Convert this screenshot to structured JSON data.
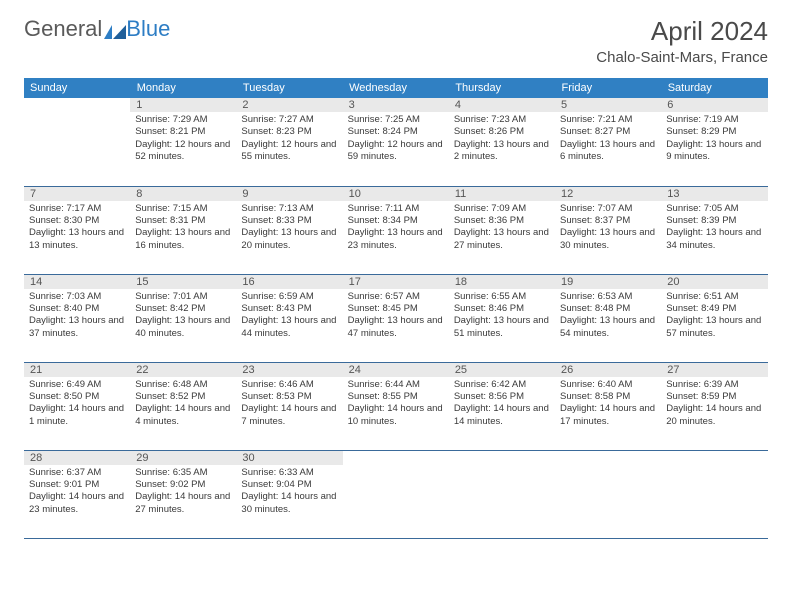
{
  "brand": {
    "part1": "General",
    "part2": "Blue"
  },
  "title": "April 2024",
  "location": "Chalo-Saint-Mars, France",
  "colors": {
    "header_bg": "#3080c3",
    "header_text": "#ffffff",
    "daynum_bg": "#e9e9e9",
    "row_border": "#3a6a9a",
    "body_text": "#3a3a3a"
  },
  "weekdays": [
    "Sunday",
    "Monday",
    "Tuesday",
    "Wednesday",
    "Thursday",
    "Friday",
    "Saturday"
  ],
  "weeks": [
    [
      {
        "day": "",
        "sunrise": "",
        "sunset": "",
        "daylight": ""
      },
      {
        "day": "1",
        "sunrise": "Sunrise: 7:29 AM",
        "sunset": "Sunset: 8:21 PM",
        "daylight": "Daylight: 12 hours and 52 minutes."
      },
      {
        "day": "2",
        "sunrise": "Sunrise: 7:27 AM",
        "sunset": "Sunset: 8:23 PM",
        "daylight": "Daylight: 12 hours and 55 minutes."
      },
      {
        "day": "3",
        "sunrise": "Sunrise: 7:25 AM",
        "sunset": "Sunset: 8:24 PM",
        "daylight": "Daylight: 12 hours and 59 minutes."
      },
      {
        "day": "4",
        "sunrise": "Sunrise: 7:23 AM",
        "sunset": "Sunset: 8:26 PM",
        "daylight": "Daylight: 13 hours and 2 minutes."
      },
      {
        "day": "5",
        "sunrise": "Sunrise: 7:21 AM",
        "sunset": "Sunset: 8:27 PM",
        "daylight": "Daylight: 13 hours and 6 minutes."
      },
      {
        "day": "6",
        "sunrise": "Sunrise: 7:19 AM",
        "sunset": "Sunset: 8:29 PM",
        "daylight": "Daylight: 13 hours and 9 minutes."
      }
    ],
    [
      {
        "day": "7",
        "sunrise": "Sunrise: 7:17 AM",
        "sunset": "Sunset: 8:30 PM",
        "daylight": "Daylight: 13 hours and 13 minutes."
      },
      {
        "day": "8",
        "sunrise": "Sunrise: 7:15 AM",
        "sunset": "Sunset: 8:31 PM",
        "daylight": "Daylight: 13 hours and 16 minutes."
      },
      {
        "day": "9",
        "sunrise": "Sunrise: 7:13 AM",
        "sunset": "Sunset: 8:33 PM",
        "daylight": "Daylight: 13 hours and 20 minutes."
      },
      {
        "day": "10",
        "sunrise": "Sunrise: 7:11 AM",
        "sunset": "Sunset: 8:34 PM",
        "daylight": "Daylight: 13 hours and 23 minutes."
      },
      {
        "day": "11",
        "sunrise": "Sunrise: 7:09 AM",
        "sunset": "Sunset: 8:36 PM",
        "daylight": "Daylight: 13 hours and 27 minutes."
      },
      {
        "day": "12",
        "sunrise": "Sunrise: 7:07 AM",
        "sunset": "Sunset: 8:37 PM",
        "daylight": "Daylight: 13 hours and 30 minutes."
      },
      {
        "day": "13",
        "sunrise": "Sunrise: 7:05 AM",
        "sunset": "Sunset: 8:39 PM",
        "daylight": "Daylight: 13 hours and 34 minutes."
      }
    ],
    [
      {
        "day": "14",
        "sunrise": "Sunrise: 7:03 AM",
        "sunset": "Sunset: 8:40 PM",
        "daylight": "Daylight: 13 hours and 37 minutes."
      },
      {
        "day": "15",
        "sunrise": "Sunrise: 7:01 AM",
        "sunset": "Sunset: 8:42 PM",
        "daylight": "Daylight: 13 hours and 40 minutes."
      },
      {
        "day": "16",
        "sunrise": "Sunrise: 6:59 AM",
        "sunset": "Sunset: 8:43 PM",
        "daylight": "Daylight: 13 hours and 44 minutes."
      },
      {
        "day": "17",
        "sunrise": "Sunrise: 6:57 AM",
        "sunset": "Sunset: 8:45 PM",
        "daylight": "Daylight: 13 hours and 47 minutes."
      },
      {
        "day": "18",
        "sunrise": "Sunrise: 6:55 AM",
        "sunset": "Sunset: 8:46 PM",
        "daylight": "Daylight: 13 hours and 51 minutes."
      },
      {
        "day": "19",
        "sunrise": "Sunrise: 6:53 AM",
        "sunset": "Sunset: 8:48 PM",
        "daylight": "Daylight: 13 hours and 54 minutes."
      },
      {
        "day": "20",
        "sunrise": "Sunrise: 6:51 AM",
        "sunset": "Sunset: 8:49 PM",
        "daylight": "Daylight: 13 hours and 57 minutes."
      }
    ],
    [
      {
        "day": "21",
        "sunrise": "Sunrise: 6:49 AM",
        "sunset": "Sunset: 8:50 PM",
        "daylight": "Daylight: 14 hours and 1 minute."
      },
      {
        "day": "22",
        "sunrise": "Sunrise: 6:48 AM",
        "sunset": "Sunset: 8:52 PM",
        "daylight": "Daylight: 14 hours and 4 minutes."
      },
      {
        "day": "23",
        "sunrise": "Sunrise: 6:46 AM",
        "sunset": "Sunset: 8:53 PM",
        "daylight": "Daylight: 14 hours and 7 minutes."
      },
      {
        "day": "24",
        "sunrise": "Sunrise: 6:44 AM",
        "sunset": "Sunset: 8:55 PM",
        "daylight": "Daylight: 14 hours and 10 minutes."
      },
      {
        "day": "25",
        "sunrise": "Sunrise: 6:42 AM",
        "sunset": "Sunset: 8:56 PM",
        "daylight": "Daylight: 14 hours and 14 minutes."
      },
      {
        "day": "26",
        "sunrise": "Sunrise: 6:40 AM",
        "sunset": "Sunset: 8:58 PM",
        "daylight": "Daylight: 14 hours and 17 minutes."
      },
      {
        "day": "27",
        "sunrise": "Sunrise: 6:39 AM",
        "sunset": "Sunset: 8:59 PM",
        "daylight": "Daylight: 14 hours and 20 minutes."
      }
    ],
    [
      {
        "day": "28",
        "sunrise": "Sunrise: 6:37 AM",
        "sunset": "Sunset: 9:01 PM",
        "daylight": "Daylight: 14 hours and 23 minutes."
      },
      {
        "day": "29",
        "sunrise": "Sunrise: 6:35 AM",
        "sunset": "Sunset: 9:02 PM",
        "daylight": "Daylight: 14 hours and 27 minutes."
      },
      {
        "day": "30",
        "sunrise": "Sunrise: 6:33 AM",
        "sunset": "Sunset: 9:04 PM",
        "daylight": "Daylight: 14 hours and 30 minutes."
      },
      {
        "day": "",
        "sunrise": "",
        "sunset": "",
        "daylight": ""
      },
      {
        "day": "",
        "sunrise": "",
        "sunset": "",
        "daylight": ""
      },
      {
        "day": "",
        "sunrise": "",
        "sunset": "",
        "daylight": ""
      },
      {
        "day": "",
        "sunrise": "",
        "sunset": "",
        "daylight": ""
      }
    ]
  ]
}
